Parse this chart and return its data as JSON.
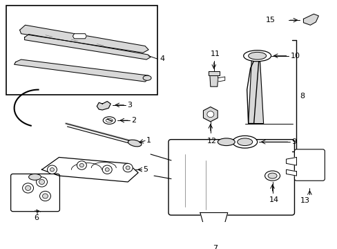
{
  "bg_color": "#ffffff",
  "line_color": "#000000",
  "fig_width": 4.89,
  "fig_height": 3.6,
  "dpi": 100,
  "gray_fill": "#d8d8d8",
  "light_gray": "#eeeeee",
  "mid_gray": "#bbbbbb"
}
